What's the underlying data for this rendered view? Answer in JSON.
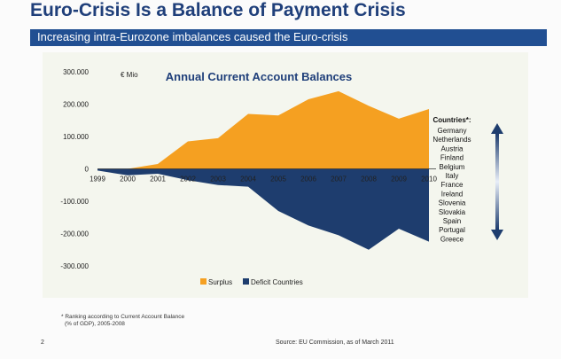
{
  "header": {
    "title": "Euro-Crisis Is a Balance of Payment Crisis",
    "subtitle": "Increasing intra-Eurozone imbalances caused the Euro-crisis"
  },
  "colors": {
    "title": "#1f3f7a",
    "subtitle_bar": "#214f92",
    "surplus": "#f5a021",
    "deficit": "#1e3d6e",
    "chart_background": "#f4f6ee",
    "chart_title": "#1f3f7a"
  },
  "chart_data": {
    "type": "area",
    "title": "Annual Current Account Balances",
    "unit_label": "€ Mio",
    "x": [
      "1999",
      "2000",
      "2001",
      "2002",
      "2003",
      "2004",
      "2005",
      "2006",
      "2007",
      "2008",
      "2009",
      "2010"
    ],
    "y_ticks": [
      "300.000",
      "200.000",
      "100.000",
      "0",
      "-100.000",
      "-200.000",
      "-300.000"
    ],
    "ylim": [
      -300000,
      300000
    ],
    "series": [
      {
        "name": "Surplus",
        "values": [
          0,
          0,
          15000,
          85000,
          95000,
          170000,
          165000,
          215000,
          240000,
          195000,
          155000,
          185000
        ]
      },
      {
        "name": "Deficit Countries",
        "values": [
          -5000,
          -20000,
          -15000,
          -35000,
          -50000,
          -55000,
          -130000,
          -175000,
          -205000,
          -250000,
          -185000,
          -225000
        ]
      }
    ],
    "legend": {
      "position": "bottom",
      "entries": [
        "Surplus",
        "Deficit Countries"
      ]
    },
    "countries_panel": {
      "heading": "Countries*:",
      "items": [
        "Germany",
        "Netherlands",
        "Austria",
        "Finland",
        "Belgium",
        "Italy",
        "France",
        "Ireland",
        "Slovenia",
        "Slovakia",
        "Spain",
        "Portugal",
        "Greece"
      ]
    }
  },
  "footer": {
    "footnote_line1": "* Ranking according to Current Account Balance",
    "footnote_line2": "(% of GDP), 2005-2008",
    "page_number": "2",
    "source": "Source:  EU Commission, as of March 2011"
  }
}
